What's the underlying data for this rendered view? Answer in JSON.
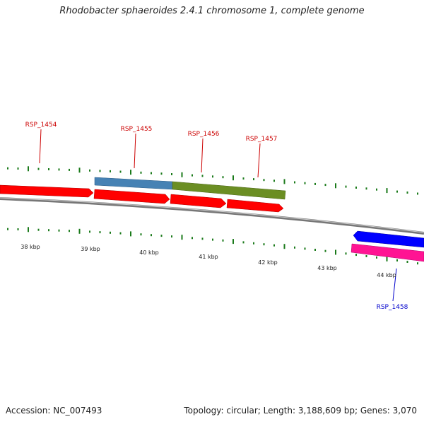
{
  "title": "Rhodobacter sphaeroides 2.4.1 chromosome 1, complete genome",
  "footer": {
    "accession": "Accession: NC_007493",
    "summary": "Topology: circular; Length: 3,188,609 bp; Genes: 3,070"
  },
  "colors": {
    "forward_gene": "#ff0000",
    "reverse_gene": "#0000ff",
    "feature_steelblue": "#4682b4",
    "feature_olive": "#6b8e23",
    "feature_magenta": "#ff1493",
    "ticks": "#1a7a1a",
    "backbone": "#808080",
    "label_forward": "#cc0000",
    "label_reverse": "#0000cc"
  },
  "scale": {
    "labels": [
      "38 kbp",
      "39 kbp",
      "40 kbp",
      "41 kbp",
      "42 kbp",
      "43 kbp",
      "44 kbp"
    ]
  },
  "genes": [
    {
      "label": "RSP_1454",
      "strand": "forward"
    },
    {
      "label": "RSP_1455",
      "strand": "forward"
    },
    {
      "label": "RSP_1456",
      "strand": "forward"
    },
    {
      "label": "RSP_1457",
      "strand": "forward"
    },
    {
      "label": "RSP_1458",
      "strand": "reverse"
    }
  ]
}
